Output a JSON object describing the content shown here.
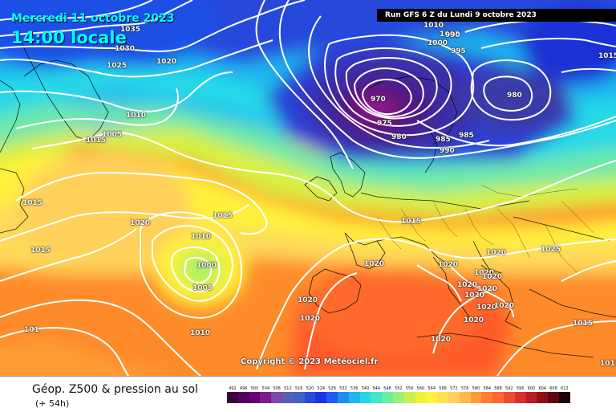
{
  "valid_date": "Mercredi 11 octobre 2023",
  "valid_time": "14:00 locale",
  "run_info": "Run GFS 6 Z du Lundi 9 octobre 2023",
  "copyright": "Copyright © 2023 Météociel.fr",
  "legend_title": "Géop. Z500 & pression au sol",
  "legend_subtitle": "(+ 54h)",
  "scale_values": [
    "492",
    "496",
    "500",
    "504",
    "508",
    "512",
    "516",
    "520",
    "524",
    "528",
    "532",
    "536",
    "540",
    "544",
    "548",
    "552",
    "556",
    "560",
    "564",
    "568",
    "572",
    "576",
    "580",
    "584",
    "588",
    "592",
    "596",
    "600",
    "604",
    "608",
    "612"
  ],
  "scale_colors": [
    "#3d0040",
    "#52005a",
    "#6a0075",
    "#7f1a8e",
    "#7a4aa8",
    "#5a5fb4",
    "#3f63c6",
    "#2b48d6",
    "#1f33e6",
    "#1f5ef0",
    "#1f8cf2",
    "#1fb6f0",
    "#22d9e6",
    "#3fe8c6",
    "#68f0a0",
    "#9af07a",
    "#c8f050",
    "#eef03a",
    "#fff23a",
    "#ffe050",
    "#ffd060",
    "#ffb84a",
    "#ff9a38",
    "#ff7e30",
    "#ff6630",
    "#f04a30",
    "#d8302a",
    "#b81e24",
    "#901018",
    "#60080e",
    "#200406"
  ],
  "isobars": [
    {
      "label": "1035",
      "name": "isobar-label-1035"
    },
    {
      "label": "1030",
      "name": "isobar-label-1030-a"
    },
    {
      "label": "1020",
      "name": "isobar-label-1020-a"
    },
    {
      "label": "1025",
      "name": "isobar-label-1025-a"
    },
    {
      "label": "1010",
      "name": "isobar-label-1010-a"
    },
    {
      "label": "1015",
      "name": "isobar-label-1015-a"
    },
    {
      "label": "1005",
      "name": "isobar-label-1005-a"
    },
    {
      "label": "1015",
      "name": "isobar-label-1015-b"
    },
    {
      "label": "1015",
      "name": "isobar-label-1015-c"
    },
    {
      "label": "1020",
      "name": "isobar-label-1020-b"
    },
    {
      "label": "1010",
      "name": "isobar-label-1010-b"
    },
    {
      "label": "1000",
      "name": "isobar-label-1000-a"
    },
    {
      "label": "1005",
      "name": "isobar-label-1005-b"
    },
    {
      "label": "1015",
      "name": "isobar-label-1015-d"
    },
    {
      "label": "1010",
      "name": "isobar-label-1010-c"
    },
    {
      "label": "1010",
      "name": "isobar-label-1010-d"
    },
    {
      "label": "1005",
      "name": "isobar-label-1005-c"
    },
    {
      "label": "1000",
      "name": "isobar-label-1000-b"
    },
    {
      "label": "995",
      "name": "isobar-label-995"
    },
    {
      "label": "990",
      "name": "isobar-label-990-a"
    },
    {
      "label": "970",
      "name": "isobar-label-970"
    },
    {
      "label": "975",
      "name": "isobar-label-975"
    },
    {
      "label": "980",
      "name": "isobar-label-980-a"
    },
    {
      "label": "985",
      "name": "isobar-label-985-a"
    },
    {
      "label": "985",
      "name": "isobar-label-985-b"
    },
    {
      "label": "990",
      "name": "isobar-label-990-b"
    },
    {
      "label": "980",
      "name": "isobar-label-980-b"
    },
    {
      "label": "1015",
      "name": "isobar-label-1015-e"
    },
    {
      "label": "1015",
      "name": "isobar-label-1015-f"
    },
    {
      "label": "1020",
      "name": "isobar-label-1020-c"
    },
    {
      "label": "1020",
      "name": "isobar-label-1020-d"
    },
    {
      "label": "1020",
      "name": "isobar-label-1020-e"
    },
    {
      "label": "1020",
      "name": "isobar-label-1020-f"
    },
    {
      "label": "1020",
      "name": "isobar-label-1020-g"
    },
    {
      "label": "1020",
      "name": "isobar-label-1020-h"
    },
    {
      "label": "1020",
      "name": "isobar-label-1020-i"
    },
    {
      "label": "1020",
      "name": "isobar-label-1020-j"
    },
    {
      "label": "1020",
      "name": "isobar-label-1020-k"
    },
    {
      "label": "1020",
      "name": "isobar-label-1020-l"
    },
    {
      "label": "1020",
      "name": "isobar-label-1020-m"
    },
    {
      "label": "1020",
      "name": "isobar-label-1020-n"
    },
    {
      "label": "1020",
      "name": "isobar-label-1020-o"
    },
    {
      "label": "1025",
      "name": "isobar-label-1025-b"
    },
    {
      "label": "1015",
      "name": "isobar-label-1015-g"
    },
    {
      "label": "1020",
      "name": "isobar-label-1020-p"
    },
    {
      "label": "1015",
      "name": "isobar-label-1015-h"
    },
    {
      "label": "101",
      "name": "isobar-label-101"
    }
  ]
}
